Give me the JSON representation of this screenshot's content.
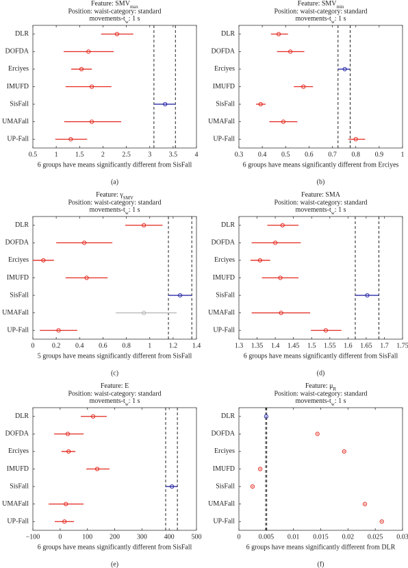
{
  "chart_data": [
    {
      "type": "interval",
      "panel": "(a)",
      "title": [
        {
          "text": "Feature: SMV"
        },
        {
          "text": "max",
          "sub": true
        }
      ],
      "subtitle": "Position: waist-category: standard",
      "subtitle2": [
        {
          "text": "movements-t"
        },
        {
          "text": "w",
          "sub": true
        },
        {
          "text": ": 1 s"
        }
      ],
      "xlabel": "6 groups have means significantly different from SisFall",
      "categories": [
        "DLR",
        "DOFDA",
        "Erciyes",
        "IMUFD",
        "SisFall",
        "UMAFall",
        "UP-Fall"
      ],
      "values": [
        2.3,
        1.69,
        1.54,
        1.76,
        3.33,
        1.76,
        1.31
      ],
      "lower": [
        1.96,
        1.16,
        1.32,
        1.2,
        3.09,
        1.17,
        0.98
      ],
      "upper": [
        2.65,
        2.23,
        1.76,
        2.18,
        3.55,
        2.39,
        1.66
      ],
      "colors": [
        "#e3261c",
        "#e3261c",
        "#e3261c",
        "#e3261c",
        "#2a2aa8",
        "#e3261c",
        "#e3261c"
      ],
      "xlim": [
        0.5,
        4
      ],
      "xticks": [
        0.5,
        1,
        1.5,
        2,
        2.5,
        3,
        3.5,
        4
      ]
    },
    {
      "type": "interval",
      "panel": "(b)",
      "title": [
        {
          "text": "Feature: SMV"
        },
        {
          "text": "min",
          "sub": true
        }
      ],
      "subtitle": "Position: waist-category: standard",
      "subtitle2": [
        {
          "text": "movements-t"
        },
        {
          "text": "w",
          "sub": true
        },
        {
          "text": ": 1 s"
        }
      ],
      "xlabel": "6 groups have means significantly different from Erciyes",
      "categories": [
        "DLR",
        "DOFDA",
        "Erciyes",
        "IMUFD",
        "SisFall",
        "UMAFall",
        "UP-Fall"
      ],
      "values": [
        0.47,
        0.52,
        0.753,
        0.576,
        0.393,
        0.49,
        0.8
      ],
      "lower": [
        0.437,
        0.463,
        0.724,
        0.535,
        0.373,
        0.43,
        0.768
      ],
      "upper": [
        0.51,
        0.58,
        0.776,
        0.617,
        0.414,
        0.55,
        0.84
      ],
      "colors": [
        "#e3261c",
        "#e3261c",
        "#2a2aa8",
        "#e3261c",
        "#e3261c",
        "#e3261c",
        "#e3261c"
      ],
      "xlim": [
        0.3,
        1
      ],
      "xticks": [
        0.3,
        0.4,
        0.5,
        0.6,
        0.7,
        0.8,
        0.9,
        1
      ]
    },
    {
      "type": "interval",
      "panel": "(c)",
      "title": [
        {
          "text": "Feature: γ"
        },
        {
          "text": "SMV",
          "sub": true
        }
      ],
      "subtitle": "Position: waist-category: standard",
      "subtitle2": [
        {
          "text": "movements-t"
        },
        {
          "text": "w",
          "sub": true
        },
        {
          "text": ": 1 s"
        }
      ],
      "xlabel": "5 groups have means significantly different from SisFall",
      "categories": [
        "DLR",
        "DOFDA",
        "Erciyes",
        "IMUFD",
        "SisFall",
        "UMAFall",
        "UP-Fall"
      ],
      "values": [
        0.95,
        0.44,
        0.09,
        0.46,
        1.26,
        0.95,
        0.22
      ],
      "lower": [
        0.79,
        0.2,
        0.0,
        0.28,
        1.16,
        0.71,
        0.06
      ],
      "upper": [
        1.11,
        0.68,
        0.18,
        0.64,
        1.36,
        1.23,
        0.38
      ],
      "colors": [
        "#e3261c",
        "#e3261c",
        "#e3261c",
        "#e3261c",
        "#2a2aa8",
        "#b4b4b4",
        "#e3261c"
      ],
      "xlim": [
        0,
        1.4
      ],
      "xticks": [
        0,
        0.2,
        0.4,
        0.6,
        0.8,
        1,
        1.2,
        1.4
      ]
    },
    {
      "type": "interval",
      "panel": "(d)",
      "title": [
        {
          "text": "Feature: SMA"
        }
      ],
      "subtitle": "Position: waist-category: standard",
      "subtitle2": [
        {
          "text": "movements-t"
        },
        {
          "text": "w",
          "sub": true
        },
        {
          "text": ": 1 s"
        }
      ],
      "xlabel": "6 groups have means significantly different from SisFall",
      "categories": [
        "DLR",
        "DOFDA",
        "Erciyes",
        "IMUFD",
        "SisFall",
        "UMAFall",
        "UP-Fall"
      ],
      "values": [
        1.42,
        1.4,
        1.358,
        1.414,
        1.653,
        1.416,
        1.539
      ],
      "lower": [
        1.378,
        1.335,
        1.332,
        1.363,
        1.62,
        1.335,
        1.498
      ],
      "upper": [
        1.464,
        1.47,
        1.386,
        1.464,
        1.685,
        1.496,
        1.582
      ],
      "colors": [
        "#e3261c",
        "#e3261c",
        "#e3261c",
        "#e3261c",
        "#2a2aa8",
        "#e3261c",
        "#e3261c"
      ],
      "xlim": [
        1.3,
        1.75
      ],
      "xticks": [
        1.3,
        1.35,
        1.4,
        1.45,
        1.5,
        1.55,
        1.6,
        1.65,
        1.7,
        1.75
      ]
    },
    {
      "type": "interval",
      "panel": "(e)",
      "title": [
        {
          "text": "Feature: E"
        }
      ],
      "subtitle": "Position: waist-category: standard",
      "subtitle2": [
        {
          "text": "movements-t"
        },
        {
          "text": "w",
          "sub": true
        },
        {
          "text": ": 1 s"
        }
      ],
      "xlabel": "6 groups have means significantly different from SisFall",
      "categories": [
        "DLR",
        "DOFDA",
        "Erciyes",
        "IMUFD",
        "SisFall",
        "UMAFall",
        "UP-Fall"
      ],
      "values": [
        121,
        28,
        31,
        136,
        410,
        21,
        16
      ],
      "lower": [
        76,
        -22,
        5,
        96,
        387,
        -42,
        -20
      ],
      "upper": [
        171,
        86,
        56,
        181,
        430,
        86,
        51
      ],
      "colors": [
        "#e3261c",
        "#e3261c",
        "#e3261c",
        "#e3261c",
        "#2a2aa8",
        "#e3261c",
        "#e3261c"
      ],
      "xlim": [
        -100,
        500
      ],
      "xticks": [
        {
          "value": -100,
          "label": "−100"
        },
        0,
        100,
        200,
        300,
        400,
        500
      ]
    },
    {
      "type": "interval",
      "panel": "(f)",
      "title": [
        {
          "text": "Feature: μ"
        },
        {
          "text": "R",
          "sub": true
        }
      ],
      "subtitle": "Position: waist-category: standard",
      "subtitle2": [
        {
          "text": "movements-t"
        },
        {
          "text": "w",
          "sub": true
        },
        {
          "text": ": 1 s"
        }
      ],
      "xlabel": "6 groups have means significantly different from DLR",
      "categories": [
        "DLR",
        "DOFDA",
        "Erciyes",
        "IMUFD",
        "SisFall",
        "UMAFall",
        "UP-Fall"
      ],
      "values": [
        0.005,
        0.0144,
        0.0193,
        0.0039,
        0.0025,
        0.0231,
        0.0262
      ],
      "lower": [
        0.0049,
        0.0143,
        0.0192,
        0.0038,
        0.0024,
        0.023,
        0.0261
      ],
      "upper": [
        0.0051,
        0.0145,
        0.0194,
        0.004,
        0.0026,
        0.0232,
        0.0263
      ],
      "colors": [
        "#2a2aa8",
        "#e3261c",
        "#e3261c",
        "#e3261c",
        "#e3261c",
        "#e3261c",
        "#e3261c"
      ],
      "xlim": [
        0,
        0.03
      ],
      "xticks": [
        0,
        0.005,
        0.01,
        0.015,
        0.02,
        0.025,
        0.03
      ]
    }
  ]
}
